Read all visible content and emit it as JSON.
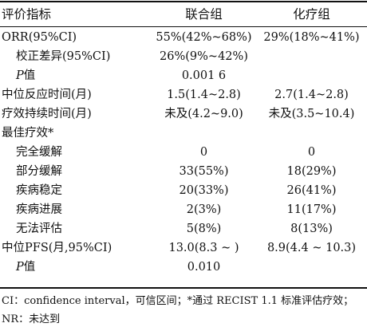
{
  "header": {
    "col0": "评价指标",
    "col1": "联合组",
    "col2": "化疗组"
  },
  "rows": [
    {
      "label": "ORR(95%CI)",
      "combo": "55%(42%~68%)",
      "chemo": "29%(18%~41%)"
    },
    {
      "label": "校正差异(95%CI)",
      "combo": "26%(9%~42%)",
      "chemo": ""
    },
    {
      "label_italic": "P",
      "label": "值",
      "combo": "0.001 6",
      "chemo": ""
    },
    {
      "label": "中位反应时间(月)",
      "combo": "1.5(1.4~2.8)",
      "chemo": "2.7(1.4~2.8)"
    },
    {
      "label": "疗效持续时间(月)",
      "combo": "未及(4.2~9.0)",
      "chemo": "未及(3.5~10.4)"
    },
    {
      "label": "最佳疗效*",
      "combo": "",
      "chemo": ""
    },
    {
      "label": "完全缓解",
      "combo": "0",
      "chemo": "0"
    },
    {
      "label": "部分缓解",
      "combo": "33(55%)",
      "chemo": "18(29%)"
    },
    {
      "label": "疾病稳定",
      "combo": "20(33%)",
      "chemo": "26(41%)"
    },
    {
      "label": "疾病进展",
      "combo": "2(3%)",
      "chemo": "11(17%)"
    },
    {
      "label": "无法评估",
      "combo": "5(8%)",
      "chemo": "8(13%)"
    },
    {
      "label": "中位PFS(月,95%CI)",
      "combo": "13.0(8.3 ~ )",
      "chemo": "8.9(4.4 ~ 10.3)"
    },
    {
      "label_italic": "P",
      "label": "值",
      "combo": "0.010",
      "chemo": ""
    }
  ],
  "footnote": "CI：confidence interval，可信区间；*通过 RECIST 1.1 标准评估疗效；NR：未达到"
}
